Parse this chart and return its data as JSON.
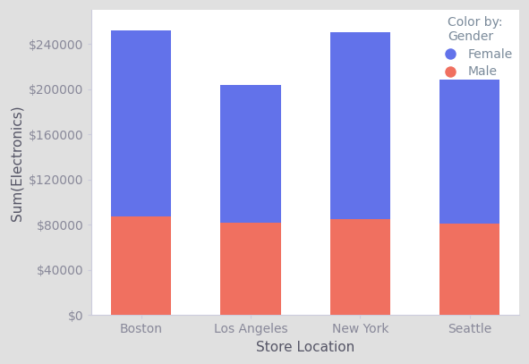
{
  "categories": [
    "Boston",
    "Los Angeles",
    "New York",
    "Seattle"
  ],
  "male_values": [
    87000,
    82000,
    85000,
    81000
  ],
  "female_values": [
    165000,
    122000,
    165000,
    127000
  ],
  "female_color": "#6272EA",
  "male_color": "#F07060",
  "xlabel": "Store Location",
  "ylabel": "Sum(Electronics)",
  "legend_title": "Color by:\nGender",
  "legend_labels": [
    "Female",
    "Male"
  ],
  "ylim": [
    0,
    270000
  ],
  "yticks": [
    0,
    40000,
    80000,
    120000,
    160000,
    200000,
    240000
  ],
  "bar_width": 0.55,
  "bg_color": "#ffffff",
  "outer_bg": "#e0e0e0",
  "label_fontsize": 11,
  "tick_fontsize": 10,
  "legend_title_color": "#7a8a9a",
  "legend_text_color": "#7a8a9a",
  "axis_label_color": "#555566",
  "tick_label_color": "#888899",
  "spine_color": "#ccccdd"
}
